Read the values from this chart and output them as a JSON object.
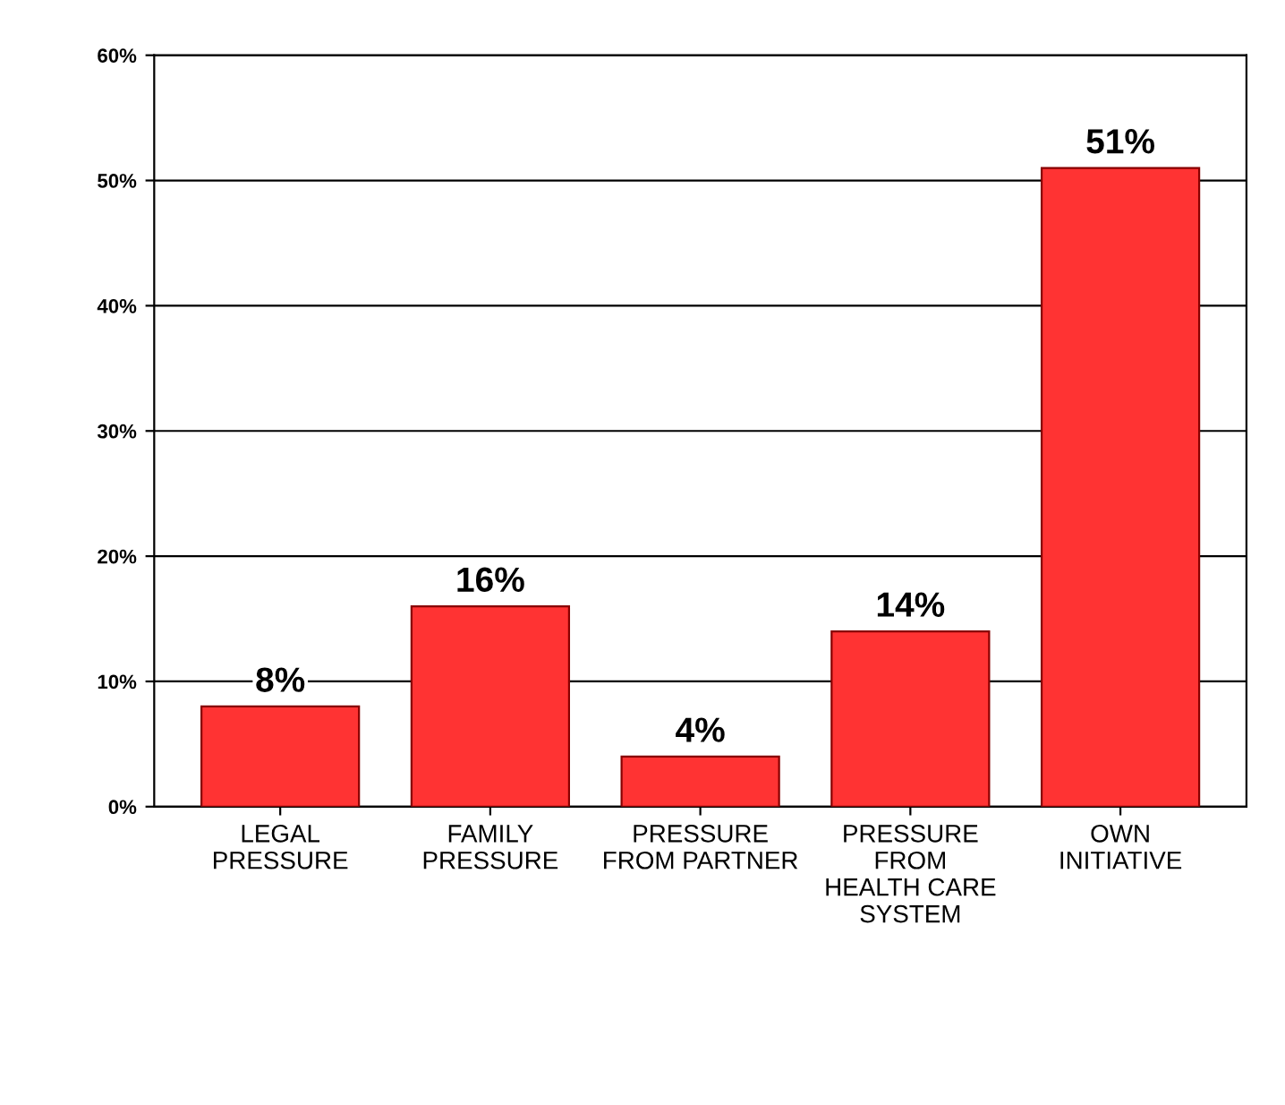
{
  "chart_data": {
    "type": "bar",
    "categories": [
      "LEGAL\nPRESSURE",
      "FAMILY\nPRESSURE",
      "PRESSURE\nFROM PARTNER",
      "PRESSURE\nFROM\nHEALTH CARE\nSYSTEM",
      "OWN\nINITIATIVE"
    ],
    "values": [
      8,
      16,
      4,
      14,
      51
    ],
    "value_labels": [
      "8%",
      "16%",
      "4%",
      "14%",
      "51%"
    ],
    "color": "#ff3333",
    "ylim": [
      0,
      60
    ],
    "yticks": [
      {
        "value": 0,
        "label": "0%"
      },
      {
        "value": 10,
        "label": "10%"
      },
      {
        "value": 20,
        "label": "20%"
      },
      {
        "value": 30,
        "label": "30%"
      },
      {
        "value": 40,
        "label": "40%"
      },
      {
        "value": 50,
        "label": "50%"
      },
      {
        "value": 60,
        "label": "60%"
      }
    ],
    "grid": "y"
  }
}
